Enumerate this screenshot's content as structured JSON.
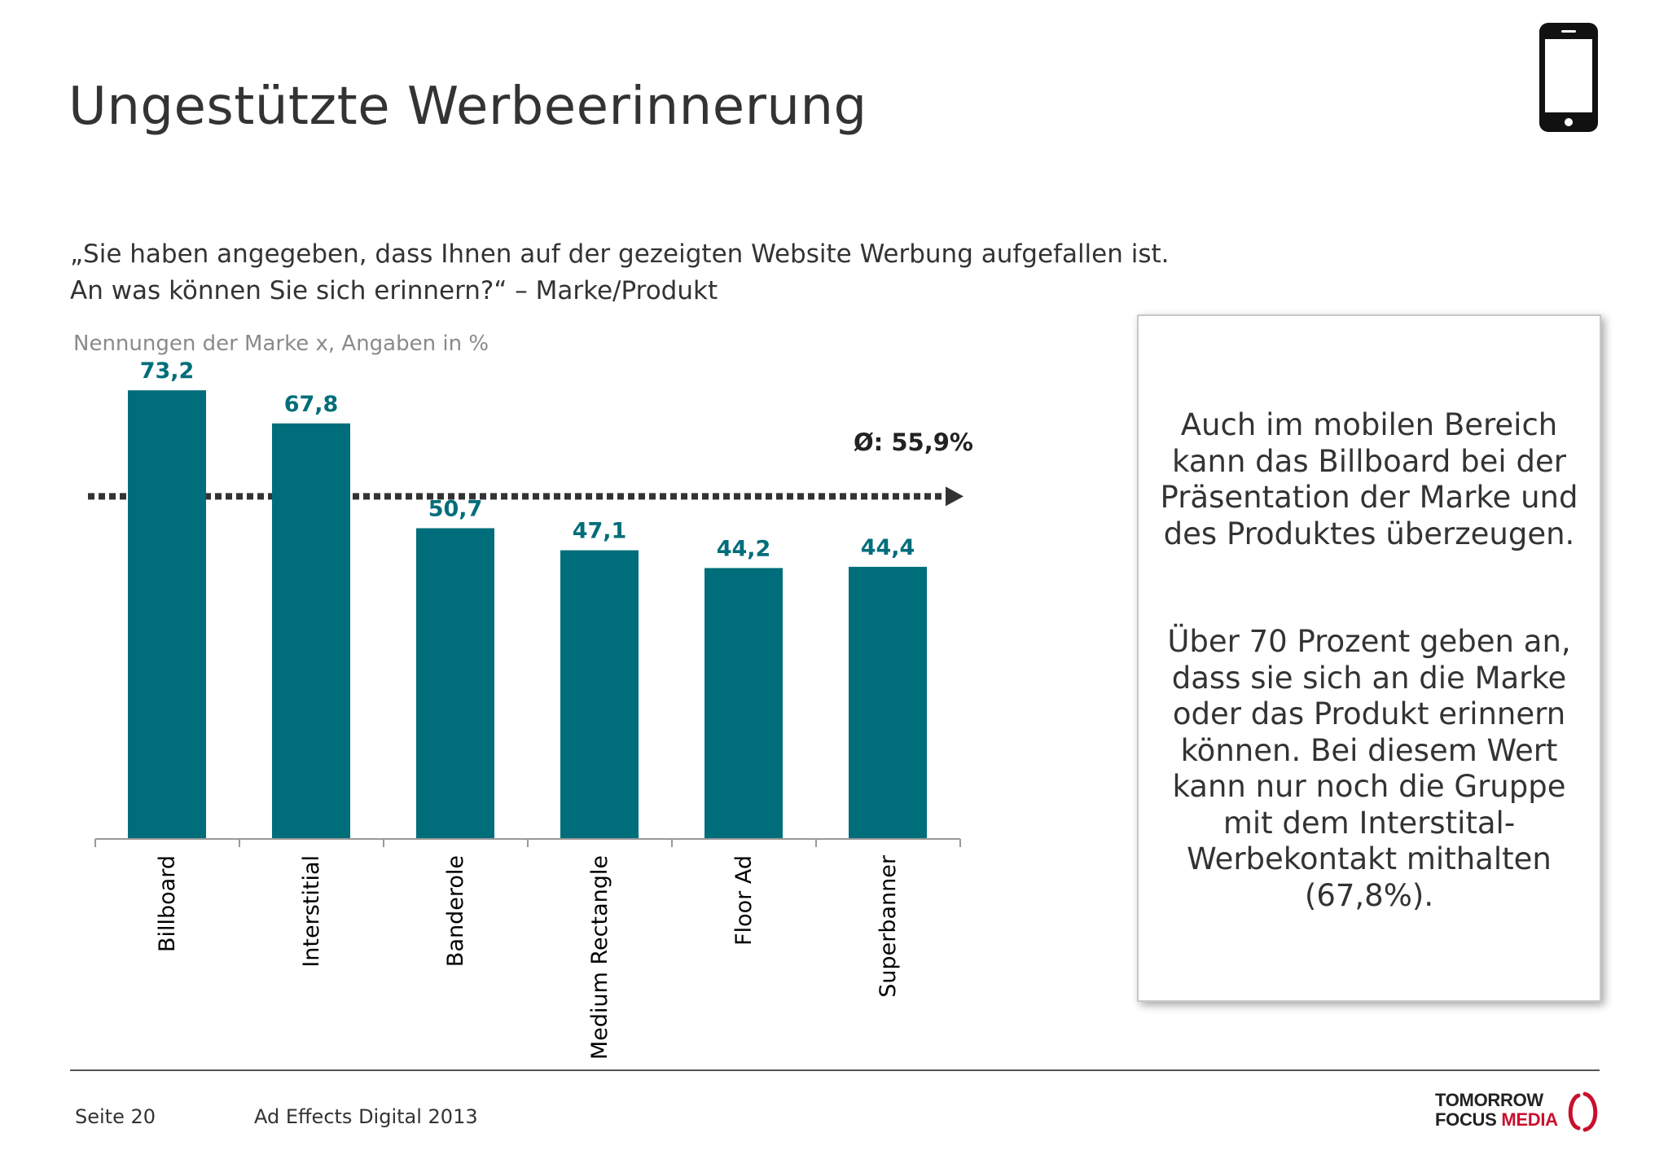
{
  "slide": {
    "title": "Ungestützte Werbeerinnerung",
    "icon": "smartphone-icon",
    "question_line1": "„Sie haben angegeben, dass Ihnen auf der gezeigten Website Werbung aufgefallen ist.",
    "question_line2": "An was können Sie sich erinnern?“ – Marke/Produkt",
    "subtitle": "Nennungen der Marke x, Angaben in %"
  },
  "chart_data": {
    "type": "bar",
    "categories": [
      "Billboard",
      "Interstitial",
      "Banderole",
      "Medium Rectangle",
      "Floor Ad",
      "Superbanner"
    ],
    "values": [
      73.2,
      67.8,
      50.7,
      47.1,
      44.2,
      44.4
    ],
    "value_labels": [
      "73,2",
      "67,8",
      "50,7",
      "47,1",
      "44,2",
      "44,4"
    ],
    "average": 55.9,
    "average_label": "Ø: 55,9%",
    "ylim": [
      0,
      80
    ],
    "bar_color": "#006e7a",
    "label_color": "#006e7a",
    "average_line_color": "#333333",
    "grid": false,
    "legend": "none"
  },
  "infobox": {
    "paragraph1": "Auch im mobilen Bereich kann das Billboard bei der Präsentation der Marke und des Produktes überzeugen.",
    "paragraph2": "Über 70 Prozent geben an, dass sie sich an die Marke oder das Produkt erinnern können. Bei diesem Wert kann nur noch die Gruppe mit dem Interstital-Werbekontakt mithalten (67,8%)."
  },
  "footer": {
    "page": "Seite 20",
    "document": "Ad Effects Digital 2013",
    "logo_line1": "TOMORROW",
    "logo_line2_a": "FOCUS",
    "logo_line2_b": "MEDIA"
  }
}
